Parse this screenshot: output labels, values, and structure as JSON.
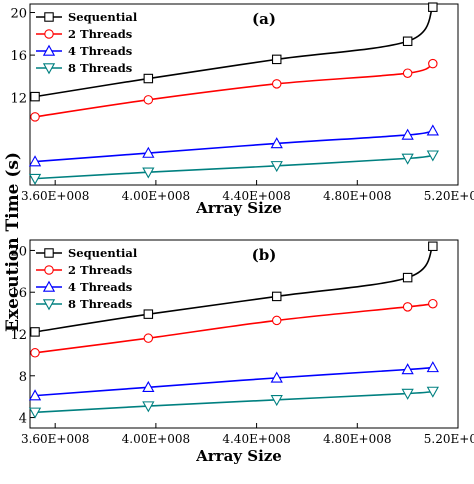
{
  "shared_ylabel": "Execution Time (s)",
  "chart_data": [
    {
      "type": "line",
      "panel_label": "(a)",
      "xlabel": "Array Size",
      "ylabel": "Execution Time (s)",
      "x_ticks": [
        360000000.0,
        400000000.0,
        440000000.0,
        480000000.0,
        520000000.0
      ],
      "x_tick_labels": [
        "3.60E+008",
        "4.00E+008",
        "4.40E+008",
        "4.80E+008",
        "5.20E+008"
      ],
      "y_ticks": [
        12,
        16,
        20
      ],
      "y_tick_labels": [
        "12",
        "16",
        "20"
      ],
      "xlim": [
        350000000.0,
        520000000.0
      ],
      "ylim": [
        3.8,
        20.8
      ],
      "legend_position": "top-left",
      "series": [
        {
          "name": "Sequential",
          "color": "#000000",
          "marker": "square",
          "x": [
            352000000.0,
            397000000.0,
            448000000.0,
            500000000.0,
            510000000.0
          ],
          "y": [
            12.1,
            13.8,
            15.6,
            17.3,
            20.5
          ]
        },
        {
          "name": "2 Threads",
          "color": "#ff0000",
          "marker": "circle",
          "x": [
            352000000.0,
            397000000.0,
            448000000.0,
            500000000.0,
            510000000.0
          ],
          "y": [
            10.2,
            11.8,
            13.3,
            14.3,
            15.2
          ]
        },
        {
          "name": "4 Threads",
          "color": "#0000ff",
          "marker": "triangle-up",
          "x": [
            352000000.0,
            397000000.0,
            448000000.0,
            500000000.0,
            510000000.0
          ],
          "y": [
            6.0,
            6.8,
            7.7,
            8.5,
            8.9
          ]
        },
        {
          "name": "8 Threads",
          "color": "#008080",
          "marker": "triangle-down",
          "x": [
            352000000.0,
            397000000.0,
            448000000.0,
            500000000.0,
            510000000.0
          ],
          "y": [
            4.4,
            5.0,
            5.6,
            6.3,
            6.6
          ]
        }
      ]
    },
    {
      "type": "line",
      "panel_label": "(b)",
      "xlabel": "Array Size",
      "ylabel": "Execution Time (s)",
      "x_ticks": [
        360000000.0,
        400000000.0,
        440000000.0,
        480000000.0,
        520000000.0
      ],
      "x_tick_labels": [
        "3.60E+008",
        "4.00E+008",
        "4.40E+008",
        "4.80E+008",
        "5.20E+008"
      ],
      "y_ticks": [
        4,
        8,
        12,
        16,
        20
      ],
      "y_tick_labels": [
        "4",
        "8",
        "12",
        "16",
        "20"
      ],
      "xlim": [
        350000000.0,
        520000000.0
      ],
      "ylim": [
        3.0,
        21.0
      ],
      "legend_position": "top-left",
      "series": [
        {
          "name": "Sequential",
          "color": "#000000",
          "marker": "square",
          "x": [
            352000000.0,
            397000000.0,
            448000000.0,
            500000000.0,
            510000000.0
          ],
          "y": [
            12.2,
            13.9,
            15.6,
            17.4,
            20.4
          ]
        },
        {
          "name": "2 Threads",
          "color": "#ff0000",
          "marker": "circle",
          "x": [
            352000000.0,
            397000000.0,
            448000000.0,
            500000000.0,
            510000000.0
          ],
          "y": [
            10.2,
            11.6,
            13.3,
            14.6,
            14.9
          ]
        },
        {
          "name": "4 Threads",
          "color": "#0000ff",
          "marker": "triangle-up",
          "x": [
            352000000.0,
            397000000.0,
            448000000.0,
            500000000.0,
            510000000.0
          ],
          "y": [
            6.1,
            6.9,
            7.8,
            8.6,
            8.8
          ]
        },
        {
          "name": "8 Threads",
          "color": "#008080",
          "marker": "triangle-down",
          "x": [
            352000000.0,
            397000000.0,
            448000000.0,
            500000000.0,
            510000000.0
          ],
          "y": [
            4.5,
            5.1,
            5.7,
            6.3,
            6.5
          ]
        }
      ]
    }
  ]
}
